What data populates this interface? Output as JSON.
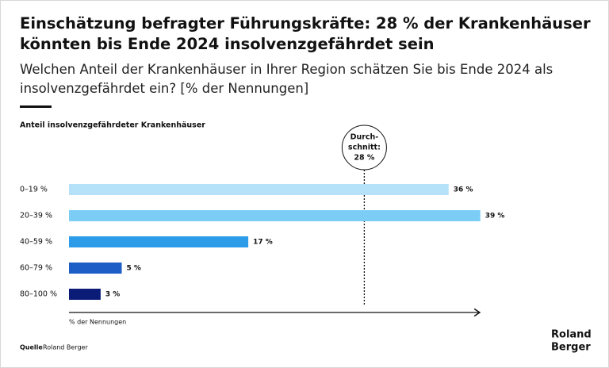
{
  "chart_data": {
    "type": "bar",
    "orientation": "horizontal",
    "title": "Einschätzung befragter Führungskräfte: 28 % der Krankenhäuser könnten bis Ende 2024 insolvenzgefährdet sein",
    "subtitle": "Welchen Anteil der Krankenhäuser in Ihrer Region schätzen Sie bis Ende 2024 als insolvenzgefährdet ein? [% der Nennungen]",
    "y_label": "Anteil insolvenzgefährdeter Krankenhäuser",
    "x_label": "% der Nennungen",
    "categories": [
      "0–19 %",
      "20–39 %",
      "40–59 %",
      "60–79 %",
      "80–100 %"
    ],
    "values": [
      36,
      39,
      17,
      5,
      3
    ],
    "value_labels": [
      "36 %",
      "39 %",
      "17 %",
      "5 %",
      "3 %"
    ],
    "colors": [
      "#b5e2f8",
      "#7ccdf5",
      "#2d9ce8",
      "#1d5ec6",
      "#0b1b78"
    ],
    "xlim": [
      0,
      40
    ],
    "average": 28,
    "average_label": [
      "Durch-",
      "schnitt:",
      "28 %"
    ],
    "source_label": "Quelle",
    "source": "Roland Berger",
    "logo": [
      "Roland",
      "Berger"
    ]
  }
}
